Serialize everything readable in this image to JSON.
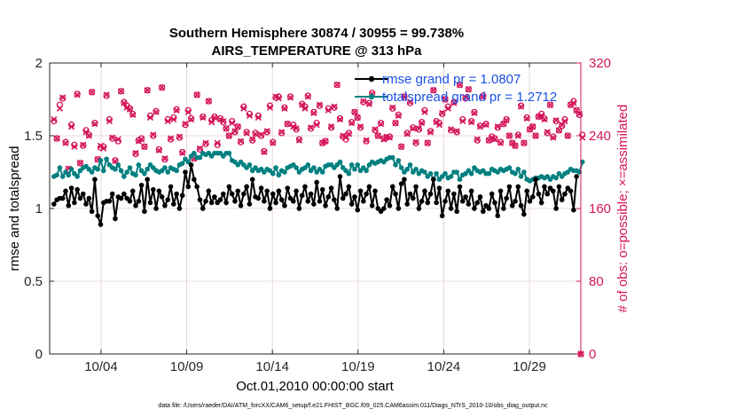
{
  "chart_data": {
    "type": "line",
    "title_line1": "Southern Hemisphere 30874 / 30955 = 99.738%",
    "title_line2": "AIRS_TEMPERATURE @ 313 hPa",
    "xlabel": "Oct.01,2010 00:00:00 start",
    "ylabel_left": "rmse and totalspread",
    "ylabel_right": "# of obs: o=possible; ×=assimilated",
    "footnote": "data file: /Users/raeder/DAI/ATM_forcXX/CAM6_setup/f.e21.FHIST_BGC.f09_025.CAM6assim.011/Diags_NTrS_2010-10/obs_diag_output.nc",
    "xlim": [
      0.5,
      31.5
    ],
    "ylim_left": [
      0,
      2
    ],
    "ylim_right": [
      0,
      320
    ],
    "x_ticks": [
      3.5,
      8.5,
      13.5,
      18.5,
      23.5,
      28.5
    ],
    "x_tick_labels": [
      "10/04",
      "10/09",
      "10/14",
      "10/19",
      "10/24",
      "10/29"
    ],
    "y_ticks_left": [
      0,
      0.5,
      1,
      1.5,
      2
    ],
    "y_tick_labels_left": [
      "0",
      "0.5",
      "1",
      "1.5",
      "2"
    ],
    "y_ticks_right": [
      0,
      80,
      160,
      240,
      320
    ],
    "y_tick_labels_right": [
      "0",
      "80",
      "160",
      "240",
      "320"
    ],
    "legend": [
      {
        "name": "rmse grand pr = 1.0807",
        "color": "#000000"
      },
      {
        "name": "totalspread grand pr = 1.2712",
        "color": "#008080"
      }
    ],
    "colors": {
      "rmse": "#000000",
      "spread": "#008080",
      "obs": "#d4145a",
      "grid": "#e6cccc"
    },
    "series": [
      {
        "name": "rmse",
        "axis": "left",
        "values": [
          1.03,
          1.06,
          1.07,
          1.07,
          1.12,
          1.02,
          1.14,
          1.04,
          1.13,
          1.07,
          1.1,
          1.03,
          1.07,
          0.98,
          1.2,
          0.95,
          0.89,
          1.04,
          1.05,
          1.05,
          1.1,
          0.93,
          1.08,
          1.07,
          1.1,
          1.07,
          1.05,
          1.12,
          1.02,
          1.05,
          1.16,
          0.98,
          1.2,
          1.04,
          1.13,
          1.0,
          1.12,
          1.08,
          1.02,
          1.06,
          1.15,
          1.03,
          1.1,
          1.0,
          1.09,
          1.25,
          1.15,
          1.3,
          1.2,
          1.15,
          1.06,
          1.0,
          1.05,
          1.12,
          1.04,
          1.08,
          1.04,
          1.06,
          1.1,
          1.04,
          1.15,
          1.1,
          1.05,
          1.12,
          1.02,
          1.1,
          1.15,
          1.03,
          1.2,
          1.08,
          1.07,
          1.14,
          1.05,
          1.12,
          1.0,
          1.1,
          1.04,
          1.12,
          1.06,
          1.02,
          1.14,
          1.07,
          1.05,
          1.12,
          1.0,
          1.09,
          1.15,
          1.05,
          1.1,
          1.03,
          1.18,
          1.05,
          1.13,
          1.02,
          1.08,
          1.14,
          1.06,
          1.0,
          1.22,
          1.07,
          1.1,
          1.15,
          1.03,
          1.08,
          0.99,
          1.12,
          1.05,
          1.1,
          1.15,
          1.02,
          1.12,
          1.0,
          0.98,
          1.0,
          1.06,
          1.02,
          1.15,
          1.1,
          1.0,
          1.17,
          1.2,
          1.03,
          1.1,
          1.07,
          1.15,
          1.0,
          1.05,
          1.12,
          1.04,
          1.1,
          1.2,
          1.04,
          1.14,
          0.95,
          1.05,
          1.12,
          1.0,
          1.1,
          0.98,
          1.15,
          1.05,
          1.08,
          1.03,
          1.12,
          1.0,
          1.04,
          1.08,
          0.98,
          1.02,
          1.0,
          1.1,
          1.04,
          0.95,
          1.12,
          1.0,
          1.07,
          1.15,
          1.02,
          1.05,
          1.15,
          1.02,
          0.96,
          1.12,
          1.05,
          1.08,
          1.2,
          1.1,
          1.04,
          1.15,
          1.1,
          1.14,
          1.12,
          1.0,
          1.15,
          1.06,
          1.1,
          1.14,
          1.12,
          0.99,
          1.22
        ]
      },
      {
        "name": "totalspread",
        "axis": "left",
        "values": [
          1.22,
          1.23,
          1.28,
          1.22,
          1.25,
          1.23,
          1.27,
          1.24,
          1.22,
          1.26,
          1.28,
          1.29,
          1.27,
          1.25,
          1.28,
          1.27,
          1.33,
          1.26,
          1.34,
          1.3,
          1.28,
          1.27,
          1.3,
          1.26,
          1.22,
          1.25,
          1.28,
          1.24,
          1.23,
          1.3,
          1.26,
          1.24,
          1.27,
          1.3,
          1.28,
          1.26,
          1.25,
          1.26,
          1.28,
          1.25,
          1.28,
          1.27,
          1.26,
          1.3,
          1.31,
          1.34,
          1.32,
          1.36,
          1.38,
          1.35,
          1.35,
          1.38,
          1.37,
          1.38,
          1.36,
          1.38,
          1.38,
          1.38,
          1.36,
          1.38,
          1.38,
          1.33,
          1.32,
          1.3,
          1.32,
          1.3,
          1.28,
          1.3,
          1.26,
          1.28,
          1.26,
          1.27,
          1.25,
          1.27,
          1.26,
          1.24,
          1.28,
          1.23,
          1.26,
          1.25,
          1.28,
          1.29,
          1.3,
          1.28,
          1.25,
          1.27,
          1.28,
          1.3,
          1.26,
          1.28,
          1.25,
          1.27,
          1.25,
          1.29,
          1.3,
          1.3,
          1.28,
          1.3,
          1.32,
          1.28,
          1.26,
          1.24,
          1.3,
          1.27,
          1.3,
          1.26,
          1.28,
          1.26,
          1.3,
          1.32,
          1.31,
          1.32,
          1.33,
          1.32,
          1.34,
          1.35,
          1.35,
          1.3,
          1.33,
          1.28,
          1.25,
          1.27,
          1.3,
          1.25,
          1.27,
          1.24,
          1.26,
          1.25,
          1.22,
          1.24,
          1.2,
          1.24,
          1.2,
          1.22,
          1.24,
          1.21,
          1.22,
          1.25,
          1.25,
          1.2,
          1.23,
          1.24,
          1.26,
          1.24,
          1.28,
          1.26,
          1.25,
          1.26,
          1.24,
          1.24,
          1.27,
          1.26,
          1.25,
          1.27,
          1.26,
          1.27,
          1.28,
          1.25,
          1.24,
          1.27,
          1.22,
          1.25,
          1.2,
          1.19,
          1.2,
          1.21,
          1.21,
          1.22,
          1.21,
          1.22,
          1.2,
          1.22,
          1.21,
          1.24,
          1.22,
          1.24,
          1.25,
          1.27,
          1.26,
          1.26,
          1.25,
          1.32
        ]
      },
      {
        "name": "obs possible",
        "axis": "right",
        "values": [
          256,
          237,
          274,
          281,
          233,
          203,
          252,
          230,
          286,
          210,
          229,
          246,
          241,
          288,
          254,
          214,
          227,
          228,
          284,
          258,
          237,
          213,
          234,
          289,
          277,
          273,
          270,
          264,
          220,
          235,
          237,
          228,
          290,
          262,
          240,
          267,
          225,
          293,
          214,
          258,
          236,
          260,
          269,
          238,
          222,
          252,
          268,
          259,
          215,
          285,
          225,
          261,
          231,
          278,
          257,
          261,
          230,
          259,
          255,
          248,
          240,
          256,
          244,
          250,
          233,
          272,
          244,
          264,
          235,
          243,
          262,
          240,
          223,
          244,
          273,
          233,
          282,
          283,
          243,
          271,
          253,
          283,
          252,
          247,
          236,
          275,
          272,
          284,
          248,
          266,
          254,
          273,
          232,
          234,
          270,
          249,
          271,
          296,
          259,
          239,
          236,
          243,
          255,
          266,
          260,
          249,
          277,
          234,
          276,
          287,
          246,
          240,
          254,
          237,
          238,
          239,
          270,
          254,
          263,
          228,
          283,
          243,
          276,
          249,
          232,
          247,
          255,
          268,
          232,
          245,
          290,
          256,
          254,
          264,
          280,
          272,
          246,
          277,
          244,
          296,
          258,
          281,
          291,
          256,
          266,
          235,
          251,
          284,
          253,
          235,
          239,
          237,
          249,
          233,
          253,
          258,
          240,
          232,
          229,
          241,
          273,
          232,
          260,
          247,
          250,
          240,
          261,
          264,
          259,
          243,
          274,
          239,
          256,
          246,
          251,
          258,
          240,
          274,
          278,
          268,
          263,
          241
        ]
      },
      {
        "name": "obs assimilated",
        "axis": "right",
        "values": [
          258,
          237,
          270,
          282,
          232,
          204,
          250,
          228,
          285,
          210,
          230,
          244,
          240,
          288,
          253,
          214,
          229,
          226,
          285,
          256,
          238,
          212,
          236,
          289,
          276,
          271,
          269,
          263,
          221,
          234,
          236,
          228,
          290,
          260,
          241,
          266,
          224,
          293,
          215,
          256,
          237,
          258,
          268,
          239,
          221,
          253,
          266,
          258,
          215,
          285,
          226,
          260,
          232,
          278,
          255,
          260,
          232,
          258,
          256,
          248,
          240,
          254,
          245,
          250,
          234,
          270,
          243,
          262,
          236,
          242,
          260,
          241,
          222,
          245,
          271,
          232,
          283,
          281,
          244,
          270,
          253,
          282,
          250,
          248,
          235,
          274,
          270,
          283,
          249,
          265,
          252,
          274,
          232,
          234,
          268,
          250,
          272,
          296,
          258,
          240,
          238,
          242,
          254,
          266,
          260,
          250,
          278,
          235,
          275,
          286,
          247,
          240,
          253,
          236,
          239,
          238,
          271,
          254,
          262,
          228,
          283,
          242,
          277,
          248,
          233,
          248,
          254,
          266,
          232,
          244,
          290,
          255,
          252,
          265,
          280,
          270,
          247,
          276,
          245,
          296,
          256,
          282,
          291,
          255,
          265,
          236,
          250,
          283,
          252,
          235,
          238,
          236,
          250,
          232,
          253,
          257,
          240,
          232,
          229,
          240,
          272,
          232,
          259,
          247,
          250,
          240,
          261,
          262,
          258,
          244,
          274,
          238,
          257,
          246,
          252,
          256,
          240,
          274,
          276,
          268,
          264,
          238
        ]
      }
    ],
    "trailing_zero_obs": {
      "x": 31.5,
      "value": 0
    }
  }
}
